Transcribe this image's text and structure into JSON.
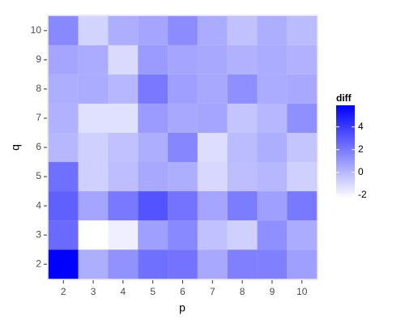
{
  "chart_data": {
    "type": "heatmap",
    "x_label": "p",
    "y_label": "q",
    "legend_title": "diff",
    "x": [
      2,
      3,
      4,
      5,
      6,
      7,
      8,
      9,
      10
    ],
    "y": [
      2,
      3,
      4,
      5,
      6,
      7,
      8,
      9,
      10
    ],
    "z": [
      [
        5.9,
        0.3,
        1.2,
        2.3,
        2.2,
        0.5,
        1.8,
        1.8,
        0.8
      ],
      [
        2.5,
        -2.3,
        -1.8,
        0.8,
        1.5,
        -0.3,
        -0.8,
        1.3,
        0.4
      ],
      [
        2.8,
        0.6,
        2.0,
        3.2,
        2.2,
        0.6,
        1.9,
        0.8,
        2.0
      ],
      [
        2.3,
        -0.8,
        -0.2,
        0.5,
        0.3,
        -1.0,
        -0.2,
        0.0,
        -0.8
      ],
      [
        0.0,
        -0.8,
        -0.3,
        0.3,
        1.6,
        -1.2,
        -0.1,
        0.3,
        -0.4
      ],
      [
        0.2,
        -1.3,
        -1.3,
        0.9,
        0.5,
        0.6,
        -0.4,
        0.0,
        1.3
      ],
      [
        0.3,
        0.4,
        0.0,
        2.0,
        0.8,
        0.5,
        1.3,
        0.4,
        0.5
      ],
      [
        0.6,
        0.4,
        -1.1,
        0.9,
        0.6,
        0.5,
        0.2,
        0.4,
        0.2
      ],
      [
        1.5,
        -0.9,
        0.3,
        0.6,
        1.4,
        0.4,
        -0.3,
        0.3,
        -0.1
      ]
    ],
    "xlim": [
      1.45,
      10.55
    ],
    "ylim": [
      1.45,
      10.55
    ],
    "xticks": [
      2,
      3,
      4,
      5,
      6,
      7,
      8,
      9,
      10
    ],
    "yticks": [
      2,
      3,
      4,
      5,
      6,
      7,
      8,
      9,
      10
    ],
    "colors": [
      "#ffffff",
      "#0000ff"
    ],
    "zlim": [
      -2.3,
      5.9
    ],
    "zticks": [
      -2,
      0,
      2,
      4
    ]
  }
}
